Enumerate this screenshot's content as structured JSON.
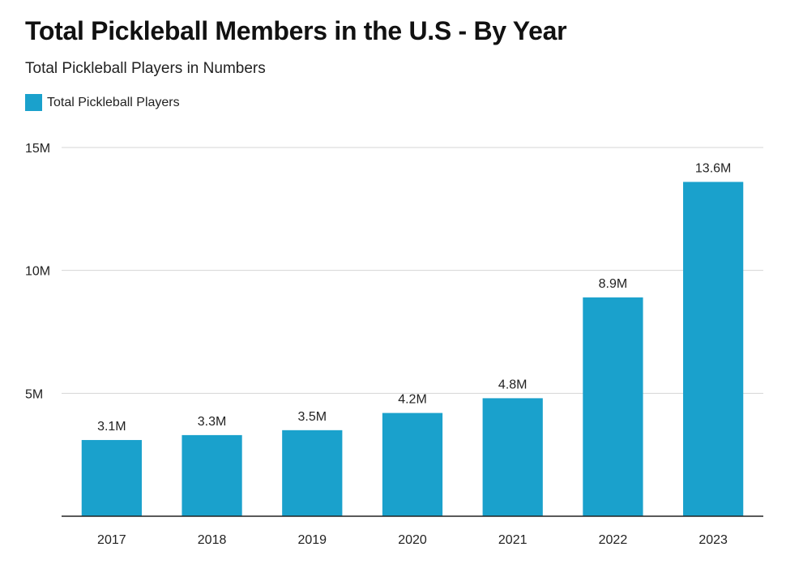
{
  "chart_data": {
    "type": "bar",
    "title": "Total Pickleball Members in the U.S - By Year",
    "subtitle": "Total Pickleball Players in Numbers",
    "categories": [
      "2017",
      "2018",
      "2019",
      "2020",
      "2021",
      "2022",
      "2023"
    ],
    "series": [
      {
        "name": "Total Pickleball Players",
        "values": [
          3.1,
          3.3,
          3.5,
          4.2,
          4.8,
          8.9,
          13.6
        ],
        "data_labels": [
          "3.1M",
          "3.3M",
          "3.5M",
          "4.2M",
          "4.8M",
          "8.9M",
          "13.6M"
        ],
        "color": "#1aa1cc"
      }
    ],
    "ylim": [
      0,
      15
    ],
    "yticks": [
      5,
      10,
      15
    ],
    "ytick_labels": [
      "5M",
      "10M",
      "15M"
    ],
    "xlabel": "",
    "ylabel": "",
    "grid": true,
    "legend": "top-left"
  }
}
